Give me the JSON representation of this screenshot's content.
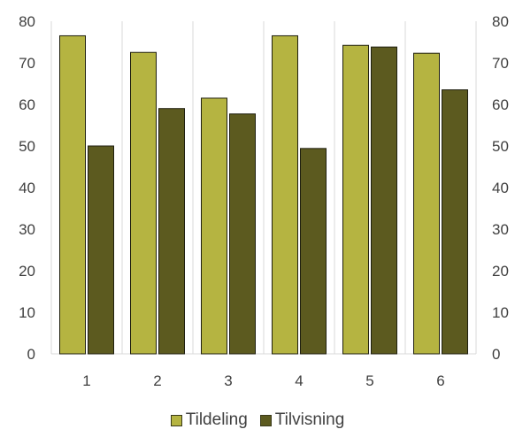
{
  "chart_data": {
    "type": "bar",
    "title": "",
    "xlabel": "",
    "ylabel": "",
    "ylim": [
      0,
      80
    ],
    "yticks": [
      0,
      10,
      20,
      30,
      40,
      50,
      60,
      70,
      80
    ],
    "categories": [
      "1",
      "2",
      "3",
      "4",
      "5",
      "6"
    ],
    "series": [
      {
        "name": "Tildeling",
        "color": "#b5b441",
        "values": [
          76.5,
          72.5,
          61.5,
          76.5,
          74.2,
          72.3
        ]
      },
      {
        "name": "Tilvisning",
        "color": "#5c5a1f",
        "values": [
          50,
          59,
          57.7,
          49.4,
          73.8,
          63.5
        ]
      }
    ],
    "grid": "vertical separators between categories",
    "legend_position": "bottom",
    "secondary_axis_ticks": [
      "80",
      "70",
      "60",
      "50",
      "40",
      "30",
      "20",
      "10",
      "0"
    ]
  }
}
